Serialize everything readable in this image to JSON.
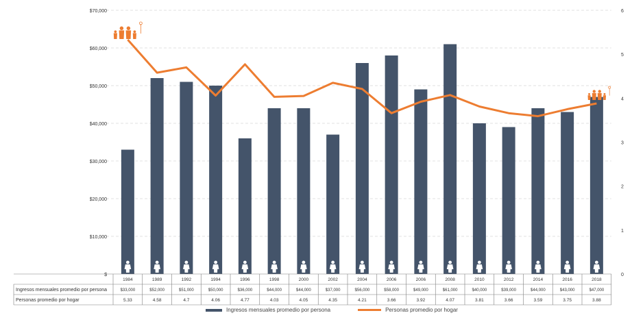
{
  "chart_data": {
    "type": "bar",
    "categories": [
      "1984",
      "1989",
      "1992",
      "1994",
      "1996",
      "1998",
      "2000",
      "2002",
      "2004",
      "2006",
      "2006",
      "2008",
      "2010",
      "2012",
      "2014",
      "2016",
      "2018"
    ],
    "series": [
      {
        "name": "Ingresos mensuales promedio por persona",
        "type": "bar",
        "axis": "left",
        "color": "#44546a",
        "values": [
          33000,
          52000,
          51000,
          50000,
          36000,
          44000,
          44000,
          37000,
          56000,
          58000,
          49000,
          61000,
          40000,
          39000,
          44000,
          43000,
          47000
        ],
        "labels": [
          "$33,000",
          "$52,000",
          "$51,000",
          "$50,000",
          "$36,000",
          "$44,000",
          "$44,000",
          "$37,000",
          "$56,000",
          "$58,000",
          "$49,000",
          "$61,000",
          "$40,000",
          "$39,000",
          "$44,000",
          "$43,000",
          "$47,000"
        ]
      },
      {
        "name": "Personas promedio por hogar",
        "type": "line",
        "axis": "right",
        "color": "#ed7d31",
        "values": [
          5.33,
          4.58,
          4.7,
          4.06,
          4.77,
          4.03,
          4.05,
          4.35,
          4.21,
          3.66,
          3.92,
          4.07,
          3.81,
          3.66,
          3.59,
          3.75,
          3.88
        ],
        "labels": [
          "5.33",
          "4.58",
          "4.7",
          "4.06",
          "4.77",
          "4.03",
          "4.05",
          "4.35",
          "4.21",
          "3.66",
          "3.92",
          "4.07",
          "3.81",
          "3.66",
          "3.59",
          "3.75",
          "3.88"
        ]
      }
    ],
    "y_left": {
      "range": [
        0,
        70000
      ],
      "ticks": [
        0,
        10000,
        20000,
        30000,
        40000,
        50000,
        60000,
        70000
      ],
      "tick_labels": [
        "$",
        "$10,000",
        "$20,000",
        "$30,000",
        "$40,000",
        "$50,000",
        "$60,000",
        "$70,000"
      ]
    },
    "y_right": {
      "range": [
        0,
        6
      ],
      "ticks": [
        0,
        1,
        2,
        3,
        4,
        5,
        6
      ],
      "tick_labels": [
        "0",
        "1",
        "2",
        "3",
        "4",
        "5",
        "6"
      ]
    },
    "gridlines": true,
    "legend": {
      "position": "bottom",
      "items": [
        "Ingresos mensuales promedio por persona",
        "Personas promedio por hogar"
      ]
    },
    "table_rows": [
      "Ingresos mensuales promedio por persona",
      "Personas promedio por hogar"
    ],
    "icon_family_large": "family-icon",
    "icon_family_small": "family-icon",
    "icon_person": "person-icon"
  }
}
